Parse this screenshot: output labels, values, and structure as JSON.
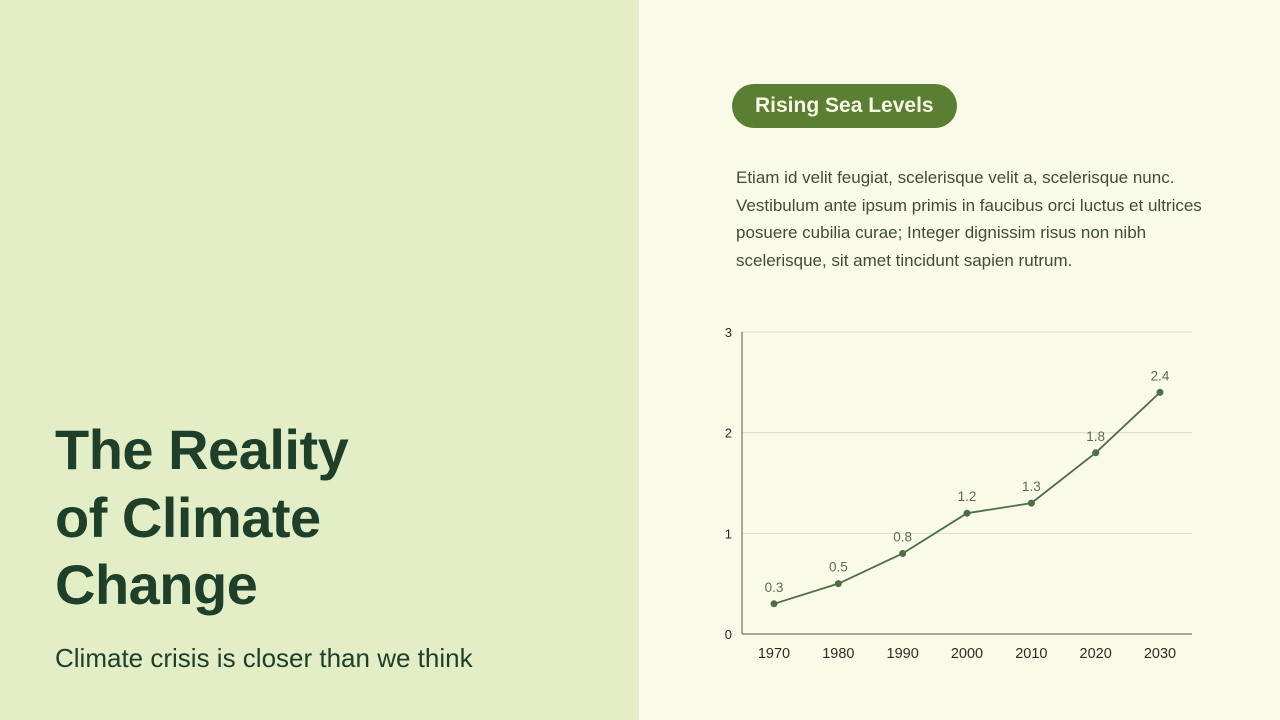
{
  "slide": {
    "left": {
      "title_lines": [
        "The Reality",
        "of Climate",
        "Change"
      ],
      "subtitle": "Climate crisis is closer than we think"
    },
    "right": {
      "badge": "Rising Sea Levels",
      "paragraph": "Etiam id velit feugiat, scelerisque velit a, scelerisque nunc. Vestibulum ante ipsum primis in faucibus orci luctus et ultrices posuere cubilia curae; Integer dignissim risus non nibh scelerisque, sit amet tincidunt sapien rutrum."
    }
  },
  "colors": {
    "left_bg": "#e4eec6",
    "right_bg": "#fafae8",
    "heading": "#1e402b",
    "badge_bg": "#5a7f33",
    "badge_text": "#f6f8e4",
    "body_text": "#3f4d33",
    "axis": "#55554a",
    "grid": "#ddddcc",
    "value_label": "#5c6e52",
    "tick": "#2c2c24"
  },
  "chart_data": {
    "type": "line",
    "categories": [
      "1970",
      "1980",
      "1990",
      "2000",
      "2010",
      "2020",
      "2030"
    ],
    "values": [
      0.3,
      0.5,
      0.8,
      1.2,
      1.3,
      1.8,
      2.4
    ],
    "title": "",
    "xlabel": "",
    "ylabel": "",
    "ylim": [
      0,
      3
    ],
    "yticks": [
      0,
      1,
      2,
      3
    ],
    "grid": true,
    "legend": "none",
    "line_color": "#4d6f45",
    "marker": "circle",
    "data_labels": true
  }
}
